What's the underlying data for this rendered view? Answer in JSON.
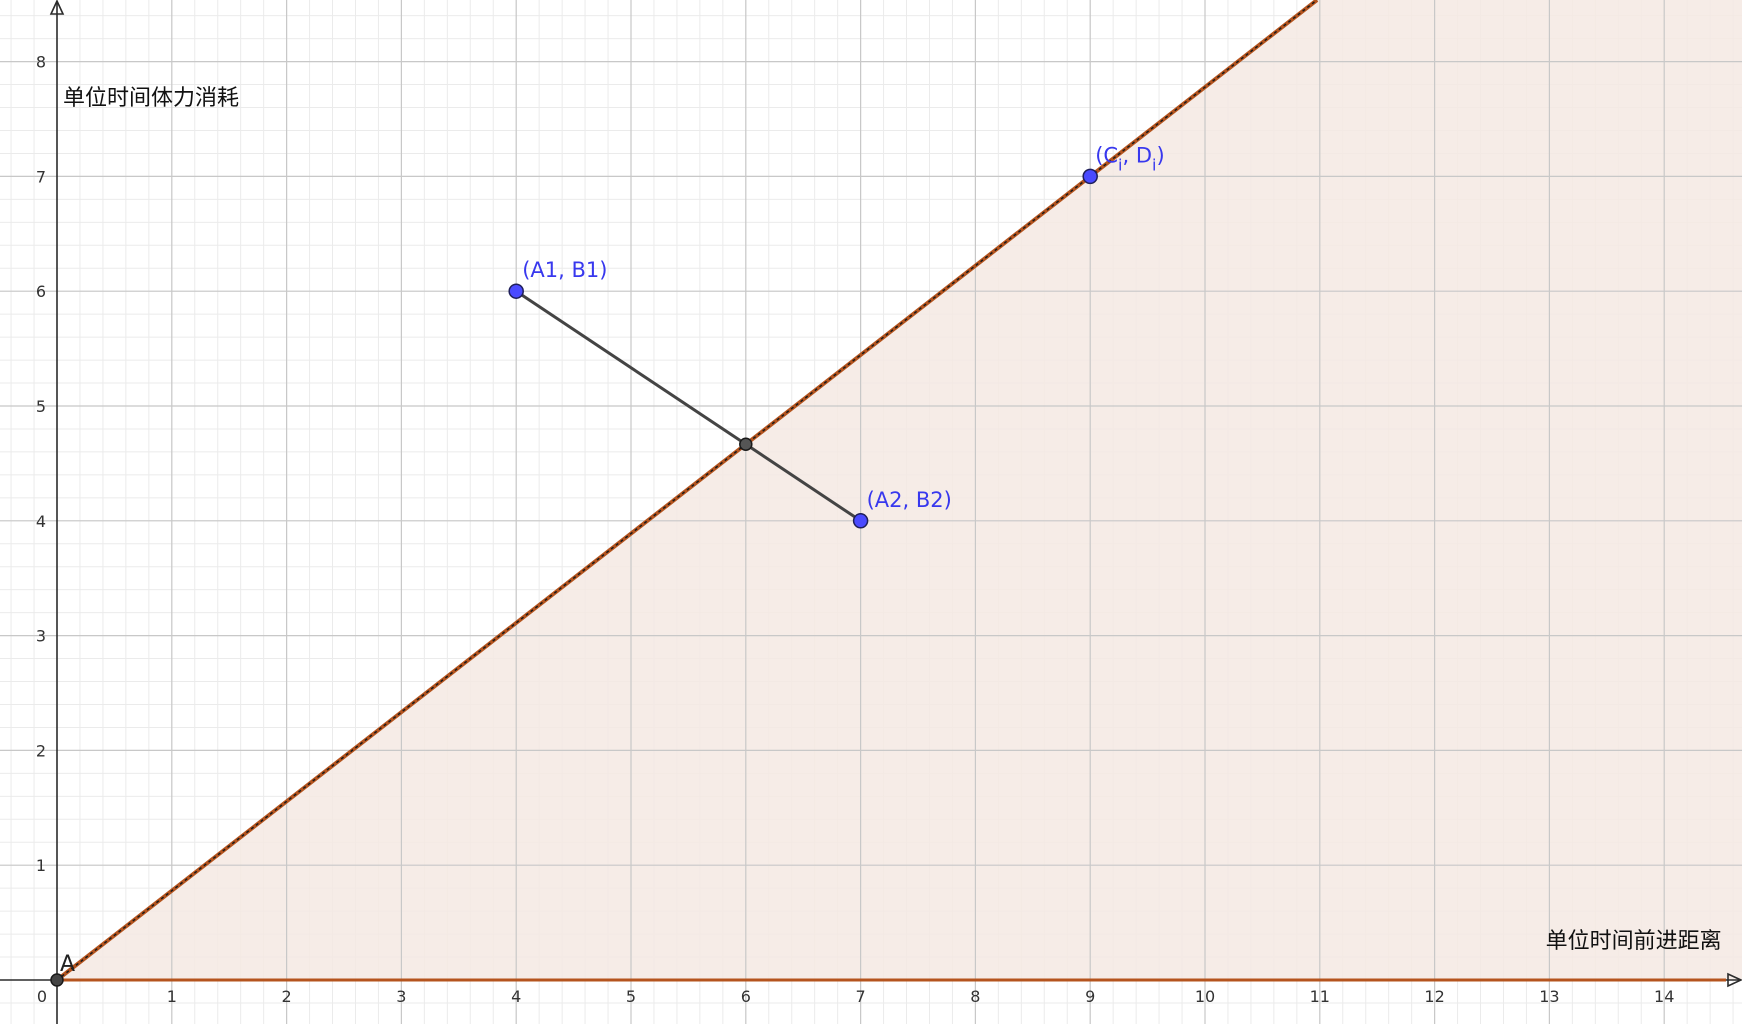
{
  "chart_data": {
    "type": "scatter",
    "xlabel": "单位时间前进距离",
    "ylabel": "单位时间体力消耗",
    "xlim": [
      0,
      14.6
    ],
    "ylim": [
      -0.4,
      8.5
    ],
    "grid": true,
    "x_ticks": [
      "0",
      "1",
      "2",
      "3",
      "4",
      "5",
      "6",
      "7",
      "8",
      "9",
      "10",
      "11",
      "12",
      "13",
      "14"
    ],
    "y_ticks": [
      "1",
      "2",
      "3",
      "4",
      "5",
      "6",
      "7",
      "8"
    ],
    "origin_point": {
      "name": "A",
      "x": 0,
      "y": 0
    },
    "points": [
      {
        "label": "(A1, B1)",
        "x": 4,
        "y": 6,
        "color": "#4a4aff"
      },
      {
        "label": "(A2, B2)",
        "x": 7,
        "y": 4,
        "color": "#4a4aff"
      },
      {
        "label_main": "(C",
        "label_sub1": "i",
        "label_mid": ", D",
        "label_sub2": "i",
        "label_end": ")",
        "x": 9,
        "y": 7,
        "color": "#4a4aff"
      }
    ],
    "intersection_point": {
      "x": 6,
      "y": 4.667
    },
    "boundary_line": {
      "from": [
        0,
        0
      ],
      "through": [
        9,
        7
      ],
      "color": "#b5541e"
    },
    "segment": {
      "from": [
        4,
        6
      ],
      "to": [
        7,
        4
      ],
      "color": "#444444"
    },
    "shaded_region": {
      "description": "below boundary line, above x-axis",
      "color": "#f4e9e3"
    }
  }
}
